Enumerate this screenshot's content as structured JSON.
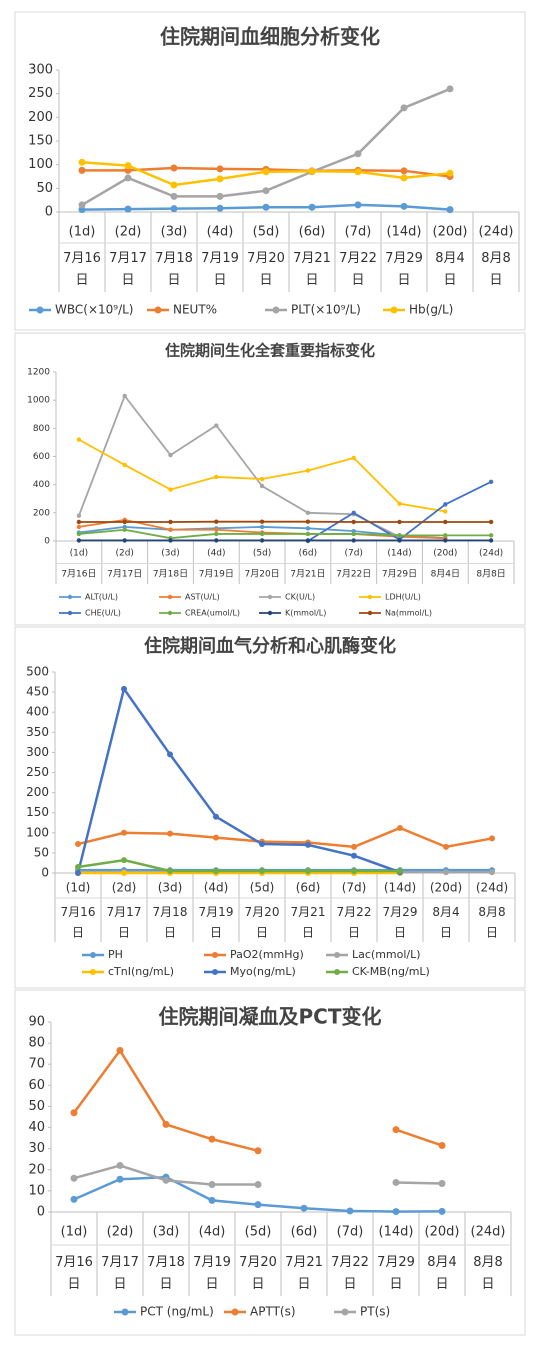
{
  "chart_data": [
    {
      "type": "line",
      "title": "住院期间血细胞分析变化",
      "categories": [
        "(1d)",
        "(2d)",
        "(3d)",
        "(4d)",
        "(5d)",
        "(6d)",
        "(7d)",
        "(14d)",
        "(20d)",
        "(24d)"
      ],
      "dates": [
        "7月16日",
        "7月17日",
        "7月18日",
        "7月19日",
        "7月20日",
        "7月21日",
        "7月22日",
        "7月29日",
        "8月4日",
        "8月8日"
      ],
      "ylim": [
        0,
        300
      ],
      "yticks": [
        0,
        50,
        100,
        150,
        200,
        250,
        300
      ],
      "grid": false,
      "series": [
        {
          "name": "WBC(×10⁹/L)",
          "color": "#5b9bd5",
          "values": [
            5,
            6,
            7,
            8,
            10,
            10,
            15,
            12,
            5,
            null
          ]
        },
        {
          "name": "NEUT%",
          "color": "#ed7d31",
          "values": [
            88,
            88,
            93,
            91,
            90,
            87,
            88,
            87,
            75,
            null
          ]
        },
        {
          "name": "PLT(×10⁹/L)",
          "color": "#a5a5a5",
          "values": [
            15,
            72,
            33,
            33,
            45,
            85,
            123,
            220,
            260,
            null
          ]
        },
        {
          "name": "Hb(g/L)",
          "color": "#ffc000",
          "values": [
            105,
            98,
            57,
            70,
            85,
            86,
            85,
            72,
            82,
            null
          ]
        }
      ]
    },
    {
      "type": "line",
      "title": "住院期间生化全套重要指标变化",
      "categories": [
        "(1d)",
        "(2d)",
        "(3d)",
        "(4d)",
        "(5d)",
        "(6d)",
        "(7d)",
        "(14d)",
        "(20d)",
        "(24d)"
      ],
      "dates": [
        "7月16日",
        "7月17日",
        "7月18日",
        "7月19日",
        "7月20日",
        "7月21日",
        "7月22日",
        "7月29日",
        "8月4日",
        "8月8日"
      ],
      "ylim": [
        0,
        1200
      ],
      "yticks": [
        0,
        200,
        400,
        600,
        800,
        1000,
        1200
      ],
      "grid": false,
      "series": [
        {
          "name": "ALT(U/L)",
          "color": "#5b9bd5",
          "values": [
            60,
            100,
            80,
            90,
            100,
            90,
            70,
            40,
            20,
            null
          ]
        },
        {
          "name": "AST(U/L)",
          "color": "#ed7d31",
          "values": [
            100,
            150,
            80,
            80,
            60,
            50,
            50,
            30,
            20,
            null
          ]
        },
        {
          "name": "CK(U/L)",
          "color": "#a5a5a5",
          "values": [
            180,
            1030,
            610,
            820,
            390,
            200,
            190,
            30,
            null,
            null
          ]
        },
        {
          "name": "LDH(U/L)",
          "color": "#ffc000",
          "values": [
            720,
            540,
            365,
            455,
            440,
            500,
            590,
            265,
            210,
            null
          ]
        },
        {
          "name": "CHE(U/L)",
          "color": "#4472c4",
          "values": [
            null,
            null,
            null,
            null,
            null,
            0,
            200,
            10,
            260,
            420
          ]
        },
        {
          "name": "CREA(umol/L)",
          "color": "#70ad47",
          "values": [
            50,
            80,
            20,
            50,
            50,
            50,
            50,
            40,
            40,
            40
          ]
        },
        {
          "name": "K(mmol/L)",
          "color": "#264478",
          "values": [
            4,
            4,
            4,
            4,
            4,
            4,
            4,
            4,
            4,
            4
          ]
        },
        {
          "name": "Na(mmol/L)",
          "color": "#9e480e",
          "values": [
            135,
            135,
            135,
            137,
            137,
            137,
            135,
            135,
            135,
            135
          ]
        }
      ]
    },
    {
      "type": "line",
      "title": "住院期间血气分析和心肌酶变化",
      "categories": [
        "(1d)",
        "(2d)",
        "(3d)",
        "(4d)",
        "(5d)",
        "(6d)",
        "(7d)",
        "(14d)",
        "(20d)",
        "(24d)"
      ],
      "dates": [
        "7月16日",
        "7月17日",
        "7月18日",
        "7月19日",
        "7月20日",
        "7月21日",
        "7月22日",
        "7月29日",
        "8月4日",
        "8月8日"
      ],
      "ylim": [
        0,
        500
      ],
      "yticks": [
        0,
        50,
        100,
        150,
        200,
        250,
        300,
        350,
        400,
        450,
        500
      ],
      "grid": false,
      "series": [
        {
          "name": "PH",
          "color": "#5b9bd5",
          "values": [
            7,
            7,
            7,
            7,
            7,
            7,
            7,
            7,
            7,
            7
          ]
        },
        {
          "name": "PaO2(mmHg)",
          "color": "#ed7d31",
          "values": [
            72,
            100,
            98,
            88,
            78,
            76,
            65,
            112,
            65,
            86
          ]
        },
        {
          "name": "Lac(mmol/L)",
          "color": "#a5a5a5",
          "values": [
            2,
            2,
            2,
            2,
            2,
            2,
            2,
            2,
            2,
            2
          ]
        },
        {
          "name": "cTnI(ng/mL)",
          "color": "#ffc000",
          "values": [
            0,
            0,
            0,
            0,
            0,
            0,
            0,
            0,
            null,
            null
          ]
        },
        {
          "name": "Myo(ng/mL)",
          "color": "#4472c4",
          "values": [
            0,
            458,
            295,
            140,
            72,
            70,
            43,
            2,
            null,
            null
          ]
        },
        {
          "name": "CK-MB(ng/mL)",
          "color": "#70ad47",
          "values": [
            15,
            32,
            5,
            5,
            5,
            5,
            5,
            5,
            null,
            null
          ]
        }
      ]
    },
    {
      "type": "line",
      "title": "住院期间凝血及PCT变化",
      "categories": [
        "(1d)",
        "(2d)",
        "(3d)",
        "(4d)",
        "(5d)",
        "(6d)",
        "(7d)",
        "(14d)",
        "(20d)",
        "(24d)"
      ],
      "dates": [
        "7月16日",
        "7月17日",
        "7月18日",
        "7月19日",
        "7月20日",
        "7月21日",
        "7月22日",
        "7月29日",
        "8月4日",
        "8月8日"
      ],
      "ylim": [
        0,
        90
      ],
      "yticks": [
        0,
        10,
        20,
        30,
        40,
        50,
        60,
        70,
        80,
        90
      ],
      "grid": false,
      "series": [
        {
          "name": "PCT (ng/mL)",
          "color": "#5b9bd5",
          "values": [
            6,
            15.5,
            16.5,
            5.5,
            3.5,
            1.8,
            0.5,
            0.2,
            0.3,
            null
          ]
        },
        {
          "name": "APTT(s)",
          "color": "#ed7d31",
          "values": [
            47,
            76.5,
            41.5,
            34.5,
            29,
            null,
            null,
            39,
            31.5,
            null
          ]
        },
        {
          "name": "PT(s)",
          "color": "#a5a5a5",
          "values": [
            16,
            22,
            15,
            13,
            13,
            null,
            null,
            14,
            13.5,
            null
          ]
        }
      ]
    }
  ]
}
